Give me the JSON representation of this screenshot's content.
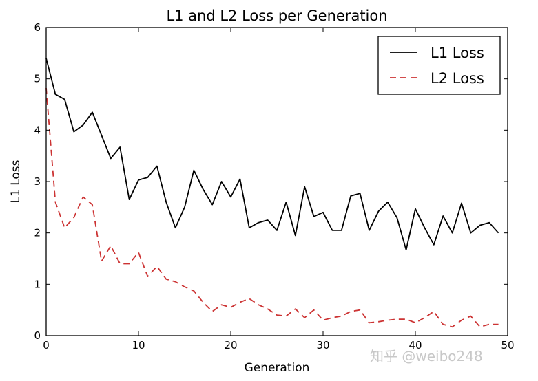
{
  "chart_data": {
    "type": "line",
    "title": "L1 and L2 Loss per Generation",
    "xlabel": "Generation",
    "ylabel": "L1 Loss",
    "xlim": [
      0,
      50
    ],
    "ylim": [
      0,
      6
    ],
    "xticks": [
      "0",
      "10",
      "20",
      "30",
      "40",
      "50"
    ],
    "yticks": [
      "0",
      "1",
      "2",
      "3",
      "4",
      "5",
      "6"
    ],
    "grid": false,
    "legend_position": "top-right",
    "x": [
      0,
      1,
      2,
      3,
      4,
      5,
      6,
      7,
      8,
      9,
      10,
      11,
      12,
      13,
      14,
      15,
      16,
      17,
      18,
      19,
      20,
      21,
      22,
      23,
      24,
      25,
      26,
      27,
      28,
      29,
      30,
      31,
      32,
      33,
      34,
      35,
      36,
      37,
      38,
      39,
      40,
      41,
      42,
      43,
      44,
      45,
      46,
      47,
      48,
      49
    ],
    "series": [
      {
        "name": "L1 Loss",
        "color": "#000000",
        "style": "solid",
        "values": [
          5.4,
          4.7,
          4.6,
          3.97,
          4.1,
          4.35,
          3.9,
          3.45,
          3.67,
          2.65,
          3.03,
          3.08,
          3.3,
          2.6,
          2.1,
          2.5,
          3.22,
          2.85,
          2.55,
          3.0,
          2.7,
          3.05,
          2.1,
          2.2,
          2.25,
          2.05,
          2.6,
          1.95,
          2.9,
          2.32,
          2.4,
          2.05,
          2.05,
          2.72,
          2.77,
          2.05,
          2.42,
          2.6,
          2.3,
          1.67,
          2.47,
          2.1,
          1.77,
          2.33,
          2.0,
          2.58,
          2.0,
          2.15,
          2.2,
          2.0
        ]
      },
      {
        "name": "L2 Loss",
        "color": "#cc3333",
        "style": "dashed",
        "values": [
          4.82,
          2.6,
          2.1,
          2.3,
          2.7,
          2.55,
          1.45,
          1.75,
          1.4,
          1.4,
          1.62,
          1.15,
          1.35,
          1.1,
          1.05,
          0.95,
          0.87,
          0.65,
          0.47,
          0.6,
          0.55,
          0.65,
          0.72,
          0.6,
          0.52,
          0.4,
          0.38,
          0.52,
          0.35,
          0.5,
          0.3,
          0.35,
          0.38,
          0.47,
          0.5,
          0.25,
          0.27,
          0.3,
          0.32,
          0.32,
          0.25,
          0.35,
          0.47,
          0.22,
          0.17,
          0.3,
          0.38,
          0.17,
          0.22,
          0.22
        ]
      }
    ]
  },
  "watermark": "知乎 @weibo248"
}
